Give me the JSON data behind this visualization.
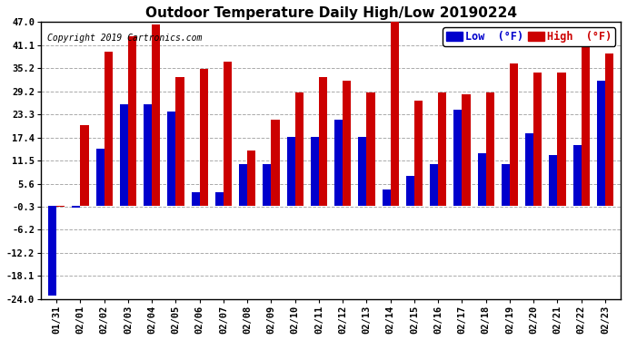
{
  "title": "Outdoor Temperature Daily High/Low 20190224",
  "copyright": "Copyright 2019 Cartronics.com",
  "legend_low": "Low  (°F)",
  "legend_high": "High  (°F)",
  "dates": [
    "01/31",
    "02/01",
    "02/02",
    "02/03",
    "02/04",
    "02/05",
    "02/06",
    "02/07",
    "02/08",
    "02/09",
    "02/10",
    "02/11",
    "02/12",
    "02/13",
    "02/14",
    "02/15",
    "02/16",
    "02/17",
    "02/18",
    "02/19",
    "02/20",
    "02/21",
    "02/22",
    "02/23"
  ],
  "lows": [
    -23.2,
    -0.5,
    14.5,
    26.0,
    26.0,
    24.0,
    3.5,
    3.5,
    10.5,
    10.5,
    17.5,
    17.5,
    22.0,
    17.5,
    4.0,
    7.5,
    10.5,
    24.5,
    13.5,
    10.5,
    18.5,
    13.0,
    15.5,
    32.0
  ],
  "highs": [
    -0.3,
    20.5,
    39.5,
    43.5,
    46.5,
    33.0,
    35.0,
    37.0,
    14.0,
    22.0,
    29.0,
    33.0,
    32.0,
    29.0,
    47.0,
    27.0,
    29.0,
    28.5,
    29.0,
    36.5,
    34.0,
    34.0,
    43.5,
    39.0
  ],
  "yticks": [
    47.0,
    41.1,
    35.2,
    29.2,
    23.3,
    17.4,
    11.5,
    5.6,
    -0.3,
    -6.2,
    -12.2,
    -18.1,
    -24.0
  ],
  "ylim": [
    -24.0,
    47.0
  ],
  "bar_width": 0.35,
  "low_color": "#0000cc",
  "high_color": "#cc0000",
  "bg_color": "#ffffff",
  "grid_color": "#aaaaaa",
  "title_fontsize": 11,
  "copyright_fontsize": 7,
  "tick_fontsize": 7.5,
  "legend_fontsize": 8.5
}
